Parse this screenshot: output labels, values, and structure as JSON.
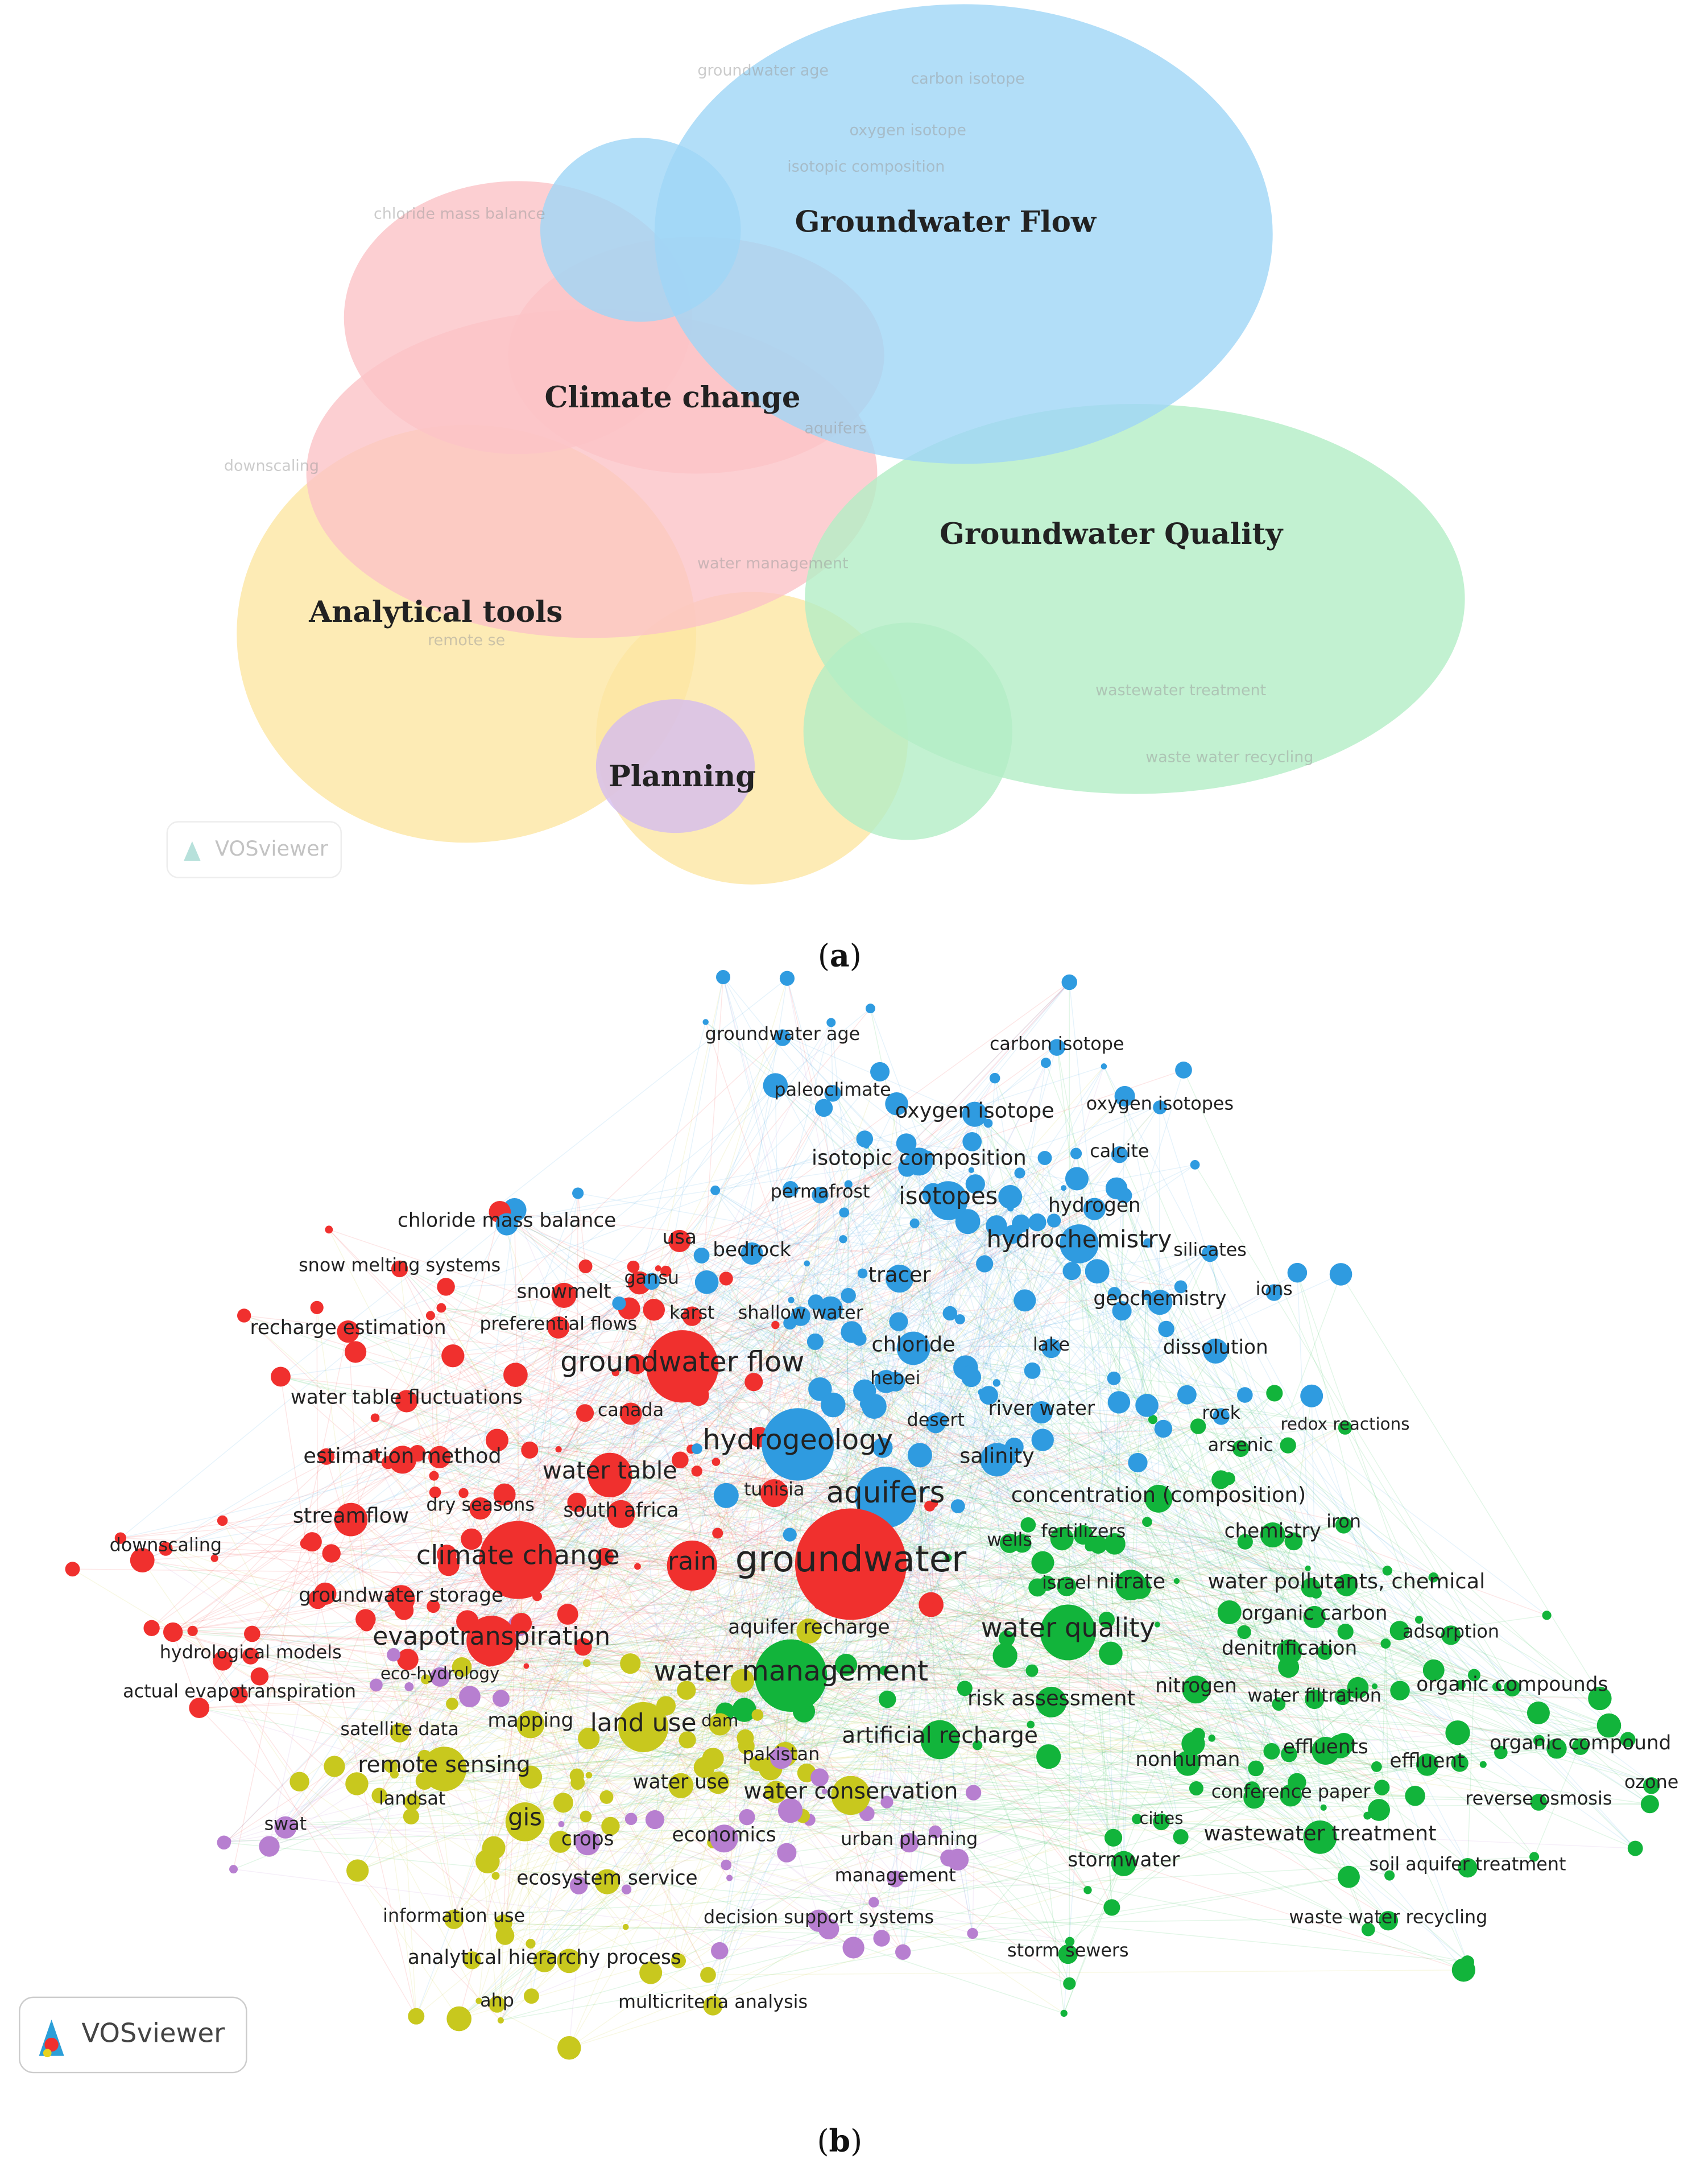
{
  "panel_a": {
    "caption": "a",
    "watermark": "VOSviewer",
    "clusters": [
      {
        "label": "Groundwater Flow",
        "color": "#9fd6f6"
      },
      {
        "label": "Climate change",
        "color": "#fbc3c7"
      },
      {
        "label": "Groundwater Quality",
        "color": "#b3edc6"
      },
      {
        "label": "Analytical tools",
        "color": "#fde6a2"
      },
      {
        "label": "Planning",
        "color": "#d5bdef"
      }
    ],
    "faint_labels": [
      "groundwater age",
      "carbon isotope",
      "oxygen isotope",
      "isotopic composition",
      "chloride mass balance",
      "aquifers",
      "water management",
      "wastewater treatment",
      "waste water recycling",
      "downscaling",
      "remote se"
    ]
  },
  "panel_b": {
    "caption": "b",
    "watermark": "VOSviewer",
    "nodes": [
      {
        "label": "groundwater age",
        "color": "#2f9be0"
      },
      {
        "label": "carbon isotope",
        "color": "#2f9be0"
      },
      {
        "label": "paleoclimate",
        "color": "#2f9be0"
      },
      {
        "label": "oxygen isotope",
        "color": "#2f9be0"
      },
      {
        "label": "oxygen isotopes",
        "color": "#2f9be0"
      },
      {
        "label": "isotopic composition",
        "color": "#2f9be0"
      },
      {
        "label": "calcite",
        "color": "#2f9be0"
      },
      {
        "label": "permafrost",
        "color": "#2f9be0"
      },
      {
        "label": "isotopes",
        "color": "#2f9be0"
      },
      {
        "label": "hydrogen",
        "color": "#2f9be0"
      },
      {
        "label": "chloride mass balance",
        "color": "#2f9be0"
      },
      {
        "label": "usa",
        "color": "#f0302e"
      },
      {
        "label": "hydrochemistry",
        "color": "#2f9be0"
      },
      {
        "label": "silicates",
        "color": "#2f9be0"
      },
      {
        "label": "bedrock",
        "color": "#2f9be0"
      },
      {
        "label": "tracer",
        "color": "#2f9be0"
      },
      {
        "label": "ions",
        "color": "#2f9be0"
      },
      {
        "label": "gansu",
        "color": "#2f9be0"
      },
      {
        "label": "geochemistry",
        "color": "#2f9be0"
      },
      {
        "label": "karst",
        "color": "#f0302e"
      },
      {
        "label": "shallow water",
        "color": "#2f9be0"
      },
      {
        "label": "chloride",
        "color": "#2f9be0"
      },
      {
        "label": "lake",
        "color": "#2f9be0"
      },
      {
        "label": "dissolution",
        "color": "#2f9be0"
      },
      {
        "label": "hebei",
        "color": "#2f9be0"
      },
      {
        "label": "river water",
        "color": "#2f9be0"
      },
      {
        "label": "desert",
        "color": "#2f9be0"
      },
      {
        "label": "rock",
        "color": "#2f9be0"
      },
      {
        "label": "salinity",
        "color": "#2f9be0"
      },
      {
        "label": "aquifers",
        "color": "#2f9be0"
      },
      {
        "label": "redox reactions",
        "color": "#12b43b"
      },
      {
        "label": "arsenic",
        "color": "#12b43b"
      },
      {
        "label": "concentration (composition)",
        "color": "#12b43b"
      },
      {
        "label": "iron",
        "color": "#12b43b"
      },
      {
        "label": "chemistry",
        "color": "#12b43b"
      },
      {
        "label": "fertilizers",
        "color": "#12b43b"
      },
      {
        "label": "wells",
        "color": "#12b43b"
      },
      {
        "label": "israel",
        "color": "#12b43b"
      },
      {
        "label": "nitrate",
        "color": "#12b43b"
      },
      {
        "label": "water pollutants, chemical",
        "color": "#12b43b"
      },
      {
        "label": "organic carbon",
        "color": "#12b43b"
      },
      {
        "label": "water quality",
        "color": "#12b43b"
      },
      {
        "label": "adsorption",
        "color": "#12b43b"
      },
      {
        "label": "denitrification",
        "color": "#12b43b"
      },
      {
        "label": "nitrogen",
        "color": "#12b43b"
      },
      {
        "label": "organic compounds",
        "color": "#12b43b"
      },
      {
        "label": "water filtration",
        "color": "#12b43b"
      },
      {
        "label": "risk assessment",
        "color": "#12b43b"
      },
      {
        "label": "effluents",
        "color": "#12b43b"
      },
      {
        "label": "organic compound",
        "color": "#12b43b"
      },
      {
        "label": "nonhuman",
        "color": "#12b43b"
      },
      {
        "label": "effluent",
        "color": "#12b43b"
      },
      {
        "label": "ozone",
        "color": "#12b43b"
      },
      {
        "label": "conference paper",
        "color": "#12b43b"
      },
      {
        "label": "reverse osmosis",
        "color": "#12b43b"
      },
      {
        "label": "cities",
        "color": "#12b43b"
      },
      {
        "label": "wastewater treatment",
        "color": "#12b43b"
      },
      {
        "label": "stormwater",
        "color": "#12b43b"
      },
      {
        "label": "soil aquifer treatment",
        "color": "#12b43b"
      },
      {
        "label": "waste water recycling",
        "color": "#12b43b"
      },
      {
        "label": "storm sewers",
        "color": "#12b43b"
      },
      {
        "label": "snow melting systems",
        "color": "#f0302e"
      },
      {
        "label": "snowmelt",
        "color": "#f0302e"
      },
      {
        "label": "recharge estimation",
        "color": "#f0302e"
      },
      {
        "label": "preferential flows",
        "color": "#f0302e"
      },
      {
        "label": "groundwater flow",
        "color": "#f0302e"
      },
      {
        "label": "water table fluctuations",
        "color": "#f0302e"
      },
      {
        "label": "canada",
        "color": "#f0302e"
      },
      {
        "label": "hydrogeology",
        "color": "#2f9be0"
      },
      {
        "label": "estimation method",
        "color": "#f0302e"
      },
      {
        "label": "water table",
        "color": "#f0302e"
      },
      {
        "label": "tunisia",
        "color": "#f0302e"
      },
      {
        "label": "dry seasons",
        "color": "#f0302e"
      },
      {
        "label": "south africa",
        "color": "#f0302e"
      },
      {
        "label": "streamflow",
        "color": "#f0302e"
      },
      {
        "label": "downscaling",
        "color": "#f0302e"
      },
      {
        "label": "climate change",
        "color": "#f0302e"
      },
      {
        "label": "rain",
        "color": "#f0302e"
      },
      {
        "label": "groundwater",
        "color": "#f0302e"
      },
      {
        "label": "groundwater storage",
        "color": "#f0302e"
      },
      {
        "label": "evapotranspiration",
        "color": "#f0302e"
      },
      {
        "label": "hydrological models",
        "color": "#f0302e"
      },
      {
        "label": "actual evapotranspiration",
        "color": "#f0302e"
      },
      {
        "label": "water management",
        "color": "#12b43b"
      },
      {
        "label": "aquifer recharge",
        "color": "#c8c81e"
      },
      {
        "label": "eco-hydrology",
        "color": "#b77fd0"
      },
      {
        "label": "mapping",
        "color": "#c8c81e"
      },
      {
        "label": "land use",
        "color": "#c8c81e"
      },
      {
        "label": "dam",
        "color": "#c8c81e"
      },
      {
        "label": "satellite data",
        "color": "#c8c81e"
      },
      {
        "label": "pakistan",
        "color": "#b77fd0"
      },
      {
        "label": "artificial recharge",
        "color": "#12b43b"
      },
      {
        "label": "remote sensing",
        "color": "#c8c81e"
      },
      {
        "label": "water use",
        "color": "#c8c81e"
      },
      {
        "label": "water conservation",
        "color": "#c8c81e"
      },
      {
        "label": "landsat",
        "color": "#c8c81e"
      },
      {
        "label": "gis",
        "color": "#c8c81e"
      },
      {
        "label": "crops",
        "color": "#b77fd0"
      },
      {
        "label": "economics",
        "color": "#b77fd0"
      },
      {
        "label": "urban planning",
        "color": "#b77fd0"
      },
      {
        "label": "ecosystem service",
        "color": "#c8c81e"
      },
      {
        "label": "management",
        "color": "#b77fd0"
      },
      {
        "label": "information use",
        "color": "#c8c81e"
      },
      {
        "label": "decision support systems",
        "color": "#b77fd0"
      },
      {
        "label": "analytical hierarchy process",
        "color": "#c8c81e"
      },
      {
        "label": "ahp",
        "color": "#c8c81e"
      },
      {
        "label": "multicriteria analysis",
        "color": "#c8c81e"
      },
      {
        "label": "swat",
        "color": "#b77fd0"
      }
    ]
  }
}
